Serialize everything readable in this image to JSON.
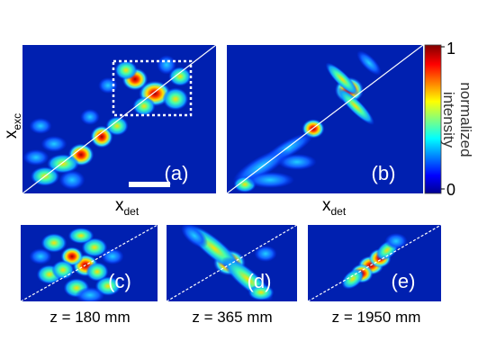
{
  "panels": [
    {
      "label": "(a)"
    },
    {
      "label": "(b)"
    },
    {
      "label": "(c)",
      "caption": "z = 180 mm"
    },
    {
      "label": "(d)",
      "caption": "z = 365 mm"
    },
    {
      "label": "(e)",
      "caption": "z = 1950 mm"
    }
  ],
  "axes": {
    "y_label": {
      "base": "x",
      "sub": "exc"
    },
    "x_label": {
      "base": "x",
      "sub": "det"
    }
  },
  "colorbar": {
    "label_lines": [
      "normalized",
      "intensity"
    ],
    "ticks": [
      0,
      1
    ]
  }
}
